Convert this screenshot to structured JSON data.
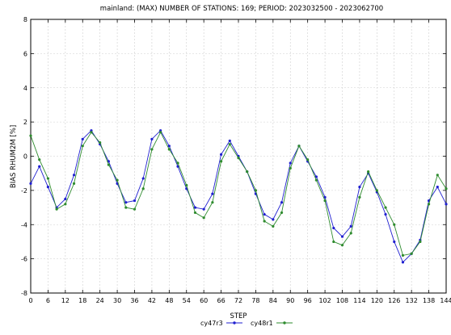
{
  "chart_data": {
    "type": "line",
    "title": "mainland:   (MAX) NUMBER OF STATIONS: 169;  PERIOD: 2023032500  -  2023062700",
    "xlabel": "STEP",
    "ylabel": "BIAS   RHUM2M [%]",
    "xlim": [
      0,
      144
    ],
    "ylim": [
      -8,
      8
    ],
    "x_ticks": [
      "0",
      "6",
      "12",
      "18",
      "24",
      "30",
      "36",
      "42",
      "48",
      "54",
      "60",
      "66",
      "72",
      "78",
      "84",
      "90",
      "96",
      "102",
      "108",
      "114",
      "120",
      "126",
      "132",
      "138",
      "144"
    ],
    "y_ticks": [
      "-8",
      "-6",
      "-4",
      "-2",
      "0",
      "2",
      "4",
      "6",
      "8"
    ],
    "x": [
      0,
      3,
      6,
      9,
      12,
      15,
      18,
      21,
      24,
      27,
      30,
      33,
      36,
      39,
      42,
      45,
      48,
      51,
      54,
      57,
      60,
      63,
      66,
      69,
      72,
      75,
      78,
      81,
      84,
      87,
      90,
      93,
      96,
      99,
      102,
      105,
      108,
      111,
      114,
      117,
      120,
      123,
      126,
      129,
      132,
      135,
      138,
      141,
      144
    ],
    "grid": true,
    "legend_position": "bottom",
    "series": [
      {
        "name": "cy47r3",
        "color": "#1f1fd0",
        "marker": "circle",
        "values": [
          -1.6,
          -0.6,
          -1.8,
          -3.0,
          -2.5,
          -1.1,
          1.0,
          1.5,
          0.7,
          -0.3,
          -1.6,
          -2.7,
          -2.6,
          -1.3,
          1.0,
          1.5,
          0.6,
          -0.6,
          -1.9,
          -3.0,
          -3.1,
          -2.2,
          0.1,
          0.9,
          0.0,
          -0.9,
          -2.2,
          -3.4,
          -3.7,
          -2.7,
          -0.4,
          0.6,
          -0.3,
          -1.2,
          -2.4,
          -4.2,
          -4.7,
          -4.1,
          -1.8,
          -1.0,
          -2.1,
          -3.4,
          -5.0,
          -6.2,
          -5.7,
          -4.9,
          -2.6,
          -1.8,
          -2.8
        ]
      },
      {
        "name": "cy48r1",
        "color": "#2e8b2e",
        "marker": "circle",
        "values": [
          1.2,
          -0.2,
          -1.3,
          -3.1,
          -2.8,
          -1.6,
          0.6,
          1.4,
          0.8,
          -0.5,
          -1.4,
          -3.0,
          -3.1,
          -1.9,
          0.4,
          1.4,
          0.4,
          -0.4,
          -1.7,
          -3.3,
          -3.6,
          -2.7,
          -0.3,
          0.7,
          -0.1,
          -0.9,
          -2.0,
          -3.8,
          -4.1,
          -3.3,
          -0.7,
          0.6,
          -0.2,
          -1.4,
          -2.6,
          -5.0,
          -5.2,
          -4.5,
          -2.4,
          -0.9,
          -2.0,
          -3.0,
          -4.0,
          -5.8,
          -5.7,
          -5.0,
          -2.8,
          -1.1,
          -1.9
        ]
      }
    ]
  }
}
